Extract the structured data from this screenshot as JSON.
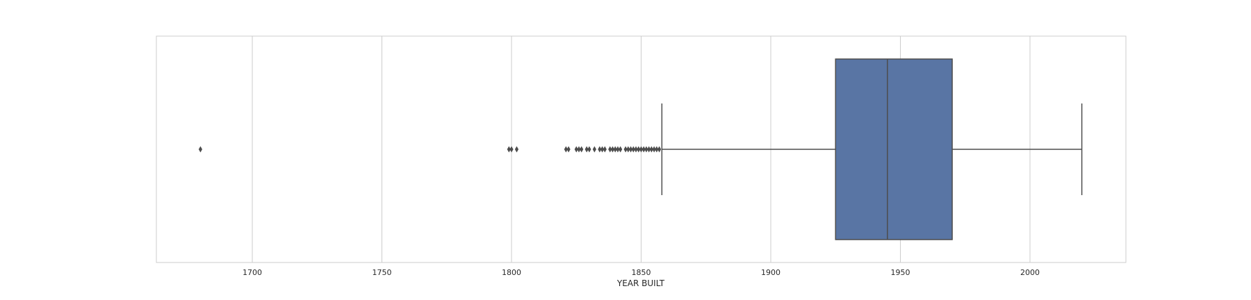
{
  "chart_data": {
    "type": "box",
    "orientation": "horizontal",
    "xlabel": "YEAR BUILT",
    "ylabel": "",
    "title": "",
    "xlim": [
      1663,
      2037
    ],
    "xticks": [
      1700,
      1750,
      1800,
      1850,
      1900,
      1950,
      2000
    ],
    "grid": true,
    "box": {
      "q1": 1925,
      "median": 1945,
      "q3": 1970,
      "whisker_low": 1858,
      "whisker_high": 2020,
      "fill_color": "#5975a4",
      "line_color": "#4d4d4d"
    },
    "outliers": [
      1680,
      1799,
      1800,
      1802,
      1821,
      1822,
      1825,
      1826,
      1827,
      1829,
      1830,
      1832,
      1834,
      1835,
      1836,
      1838,
      1839,
      1840,
      1841,
      1842,
      1844,
      1845,
      1846,
      1847,
      1848,
      1849,
      1850,
      1851,
      1852,
      1853,
      1854,
      1855,
      1856,
      1857
    ]
  }
}
